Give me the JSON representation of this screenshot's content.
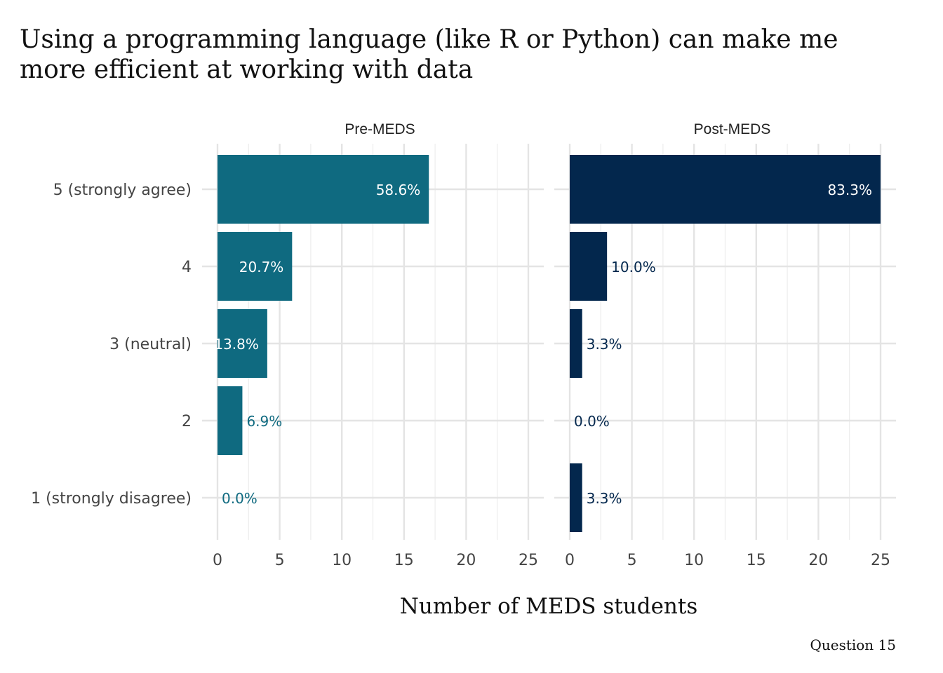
{
  "chart_data": {
    "type": "bar",
    "orientation": "horizontal",
    "title_lines": [
      "Using a programming language (like R or Python) can make me",
      "more efficient at working with data"
    ],
    "xlabel": "Number of MEDS students",
    "ylabel": "",
    "caption": "Question 15",
    "categories": [
      "5 (strongly agree)",
      "4",
      "3 (neutral)",
      "2",
      "1 (strongly disagree)"
    ],
    "xlim": [
      0,
      25
    ],
    "x_ticks": [
      "0",
      "5",
      "10",
      "15",
      "20",
      "25"
    ],
    "grid": true,
    "legend": "none",
    "panels": [
      {
        "name": "Pre-MEDS",
        "color": "#0f6a80",
        "values": [
          17,
          6,
          4,
          2,
          0
        ],
        "labels": [
          "58.6%",
          "20.7%",
          "13.8%",
          "6.9%",
          "0.0%"
        ]
      },
      {
        "name": "Post-MEDS",
        "color": "#03274d",
        "values": [
          25,
          3,
          1,
          0,
          1
        ],
        "labels": [
          "83.3%",
          "10.0%",
          "3.3%",
          "0.0%",
          "3.3%"
        ]
      }
    ]
  }
}
